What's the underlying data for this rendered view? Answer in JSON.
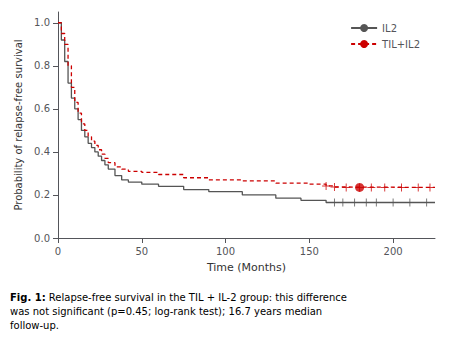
{
  "chart_data": {
    "type": "step",
    "xlabel": "Time (Months)",
    "ylabel": "Probability of relapse-free survival",
    "caption": {
      "bold": "Fig. 1:",
      "text": " Relapse-free survival in the TIL + IL-2 group: this difference was not significant (p=0.45; log-rank test); 16.7 years median follow-up."
    },
    "xlim": [
      0,
      225
    ],
    "ylim": [
      0.0,
      1.05
    ],
    "xticks": [
      0,
      50,
      100,
      150,
      200
    ],
    "yticks": [
      {
        "value": 0.0,
        "label": "0.0"
      },
      0.2,
      0.4,
      0.6,
      0.8,
      {
        "value": 1.0,
        "label": "1.0"
      }
    ],
    "grid": false,
    "legend": "upper right",
    "series": [
      {
        "name": "IL2",
        "color": "#555555",
        "line_style": "solid",
        "x": [
          0,
          2,
          4,
          6,
          8,
          10,
          12,
          14,
          16,
          18,
          20,
          22,
          24,
          26,
          28,
          30,
          34,
          38,
          42,
          50,
          60,
          75,
          90,
          110,
          130,
          145,
          160,
          225
        ],
        "values": [
          1.0,
          0.92,
          0.82,
          0.72,
          0.65,
          0.6,
          0.55,
          0.5,
          0.47,
          0.44,
          0.42,
          0.4,
          0.38,
          0.36,
          0.34,
          0.32,
          0.29,
          0.27,
          0.26,
          0.25,
          0.24,
          0.225,
          0.215,
          0.2,
          0.185,
          0.175,
          0.165,
          0.165
        ],
        "censors": {
          "marker": "+",
          "x": [
            165,
            170,
            177,
            184,
            190,
            200,
            210,
            220
          ],
          "values": [
            0.165,
            0.165,
            0.165,
            0.165,
            0.165,
            0.165,
            0.165,
            0.165
          ]
        }
      },
      {
        "name": "TIL+IL2",
        "color": "#cc0000",
        "line_style": "dashed",
        "x": [
          0,
          2,
          4,
          6,
          8,
          10,
          12,
          14,
          16,
          18,
          20,
          22,
          24,
          26,
          28,
          30,
          34,
          38,
          42,
          50,
          60,
          75,
          90,
          110,
          130,
          150,
          160,
          165,
          170,
          225
        ],
        "values": [
          1.0,
          0.95,
          0.9,
          0.8,
          0.7,
          0.63,
          0.58,
          0.53,
          0.5,
          0.47,
          0.45,
          0.43,
          0.41,
          0.39,
          0.37,
          0.35,
          0.33,
          0.32,
          0.31,
          0.305,
          0.295,
          0.28,
          0.27,
          0.265,
          0.255,
          0.25,
          0.242,
          0.237,
          0.235,
          0.235
        ],
        "censors": {
          "marker": "+",
          "x": [
            160,
            165,
            172,
            180,
            187,
            195,
            205,
            215,
            222
          ],
          "values": [
            0.242,
            0.237,
            0.235,
            0.235,
            0.235,
            0.235,
            0.235,
            0.235,
            0.235
          ]
        },
        "median_point": {
          "marker": "o",
          "x": 180,
          "value": 0.235
        }
      }
    ]
  }
}
